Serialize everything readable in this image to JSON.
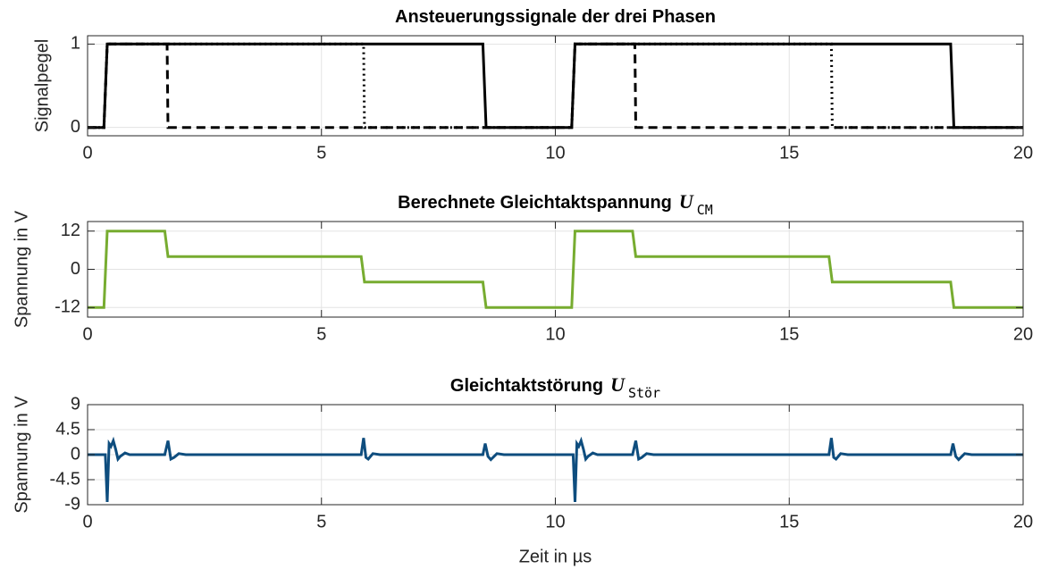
{
  "chart_data": [
    {
      "type": "line",
      "title": "Ansteuerungssignale der drei Phasen",
      "ylabel": "Signalpegel",
      "xlim": [
        0,
        20
      ],
      "xticks": [
        0,
        5,
        10,
        15,
        20
      ],
      "ylim": [
        -0.1,
        1.1
      ],
      "yticks": [
        0,
        1
      ],
      "grid": true,
      "series": [
        {
          "color": "#000000",
          "dash": "solid",
          "x": [
            0,
            0.35,
            0.42,
            8.45,
            8.52,
            10.35,
            10.42,
            18.45,
            18.52,
            20
          ],
          "values": [
            0,
            0,
            1,
            1,
            0,
            0,
            1,
            1,
            0,
            0
          ]
        },
        {
          "color": "#000000",
          "dash": "dashed",
          "x": [
            0,
            0.35,
            0.42,
            1.7,
            1.72,
            10.35,
            10.42,
            11.7,
            11.72,
            20
          ],
          "values": [
            0,
            0,
            1,
            1,
            0,
            0,
            1,
            1,
            0,
            0
          ]
        },
        {
          "color": "#000000",
          "dash": "dotted",
          "x": [
            0,
            0.35,
            0.42,
            5.9,
            5.92,
            10.35,
            10.42,
            15.9,
            15.92,
            20
          ],
          "values": [
            0,
            0,
            1,
            1,
            0,
            0,
            1,
            1,
            0,
            0
          ]
        }
      ]
    },
    {
      "type": "line",
      "title": "Berechnete Gleichtaktspannung",
      "title_symbol": "U",
      "title_subscript": "CM",
      "ylabel": "Spannung in V",
      "xlim": [
        0,
        20
      ],
      "xticks": [
        0,
        5,
        10,
        15,
        20
      ],
      "ylim": [
        -15,
        15
      ],
      "yticks": [
        -12,
        0,
        12
      ],
      "grid": true,
      "series": [
        {
          "color": "#77ac30",
          "dash": "solid",
          "x": [
            0,
            0.35,
            0.42,
            1.65,
            1.72,
            5.85,
            5.92,
            8.45,
            8.52,
            10.35,
            10.42,
            11.65,
            11.72,
            15.85,
            15.92,
            18.45,
            18.52,
            20
          ],
          "values": [
            -12,
            -12,
            12,
            12,
            4,
            4,
            -4,
            -4,
            -12,
            -12,
            12,
            12,
            4,
            4,
            -4,
            -4,
            -12,
            -12
          ]
        }
      ]
    },
    {
      "type": "line",
      "title": "Gleichtaktstörung",
      "title_symbol": "U",
      "title_subscript": "Stör",
      "ylabel": "Spannung in V",
      "xlabel": "Zeit in µs",
      "xlim": [
        0,
        20
      ],
      "xticks": [
        0,
        5,
        10,
        15,
        20
      ],
      "ylim": [
        -9,
        9
      ],
      "yticks": [
        -9,
        -4.5,
        0,
        4.5,
        9
      ],
      "grid": true,
      "series": [
        {
          "color": "#0e4d7e",
          "dash": "solid",
          "x": [
            0,
            0.38,
            0.42,
            0.46,
            0.5,
            0.55,
            0.6,
            0.65,
            0.7,
            0.8,
            0.9,
            1.0,
            1.65,
            1.72,
            1.78,
            1.85,
            1.95,
            2.1,
            5.85,
            5.9,
            5.95,
            6.0,
            6.1,
            6.25,
            8.45,
            8.5,
            8.56,
            8.62,
            8.75,
            8.9,
            10.38,
            10.42,
            10.46,
            10.5,
            10.55,
            10.6,
            10.65,
            10.7,
            10.8,
            10.9,
            11.0,
            11.65,
            11.72,
            11.78,
            11.85,
            11.95,
            12.1,
            15.85,
            15.9,
            15.95,
            16.0,
            16.1,
            16.25,
            18.45,
            18.5,
            18.56,
            18.62,
            18.75,
            18.9,
            20
          ],
          "values": [
            0,
            0,
            -8.5,
            2,
            1.5,
            2.5,
            1,
            -0.8,
            -0.3,
            0.3,
            0,
            0,
            0,
            2.5,
            -0.8,
            -0.5,
            0.2,
            0,
            0,
            3,
            -0.5,
            -0.8,
            0.2,
            0,
            0,
            2,
            -0.3,
            -0.9,
            0.2,
            0,
            0,
            -8.5,
            2,
            1.5,
            2.5,
            1,
            -0.8,
            -0.3,
            0.3,
            0,
            0,
            0,
            2.5,
            -0.8,
            -0.5,
            0.2,
            0,
            0,
            3,
            -0.5,
            -0.8,
            0.2,
            0,
            0,
            2,
            -0.3,
            -0.9,
            0.2,
            0,
            0
          ]
        }
      ]
    }
  ]
}
